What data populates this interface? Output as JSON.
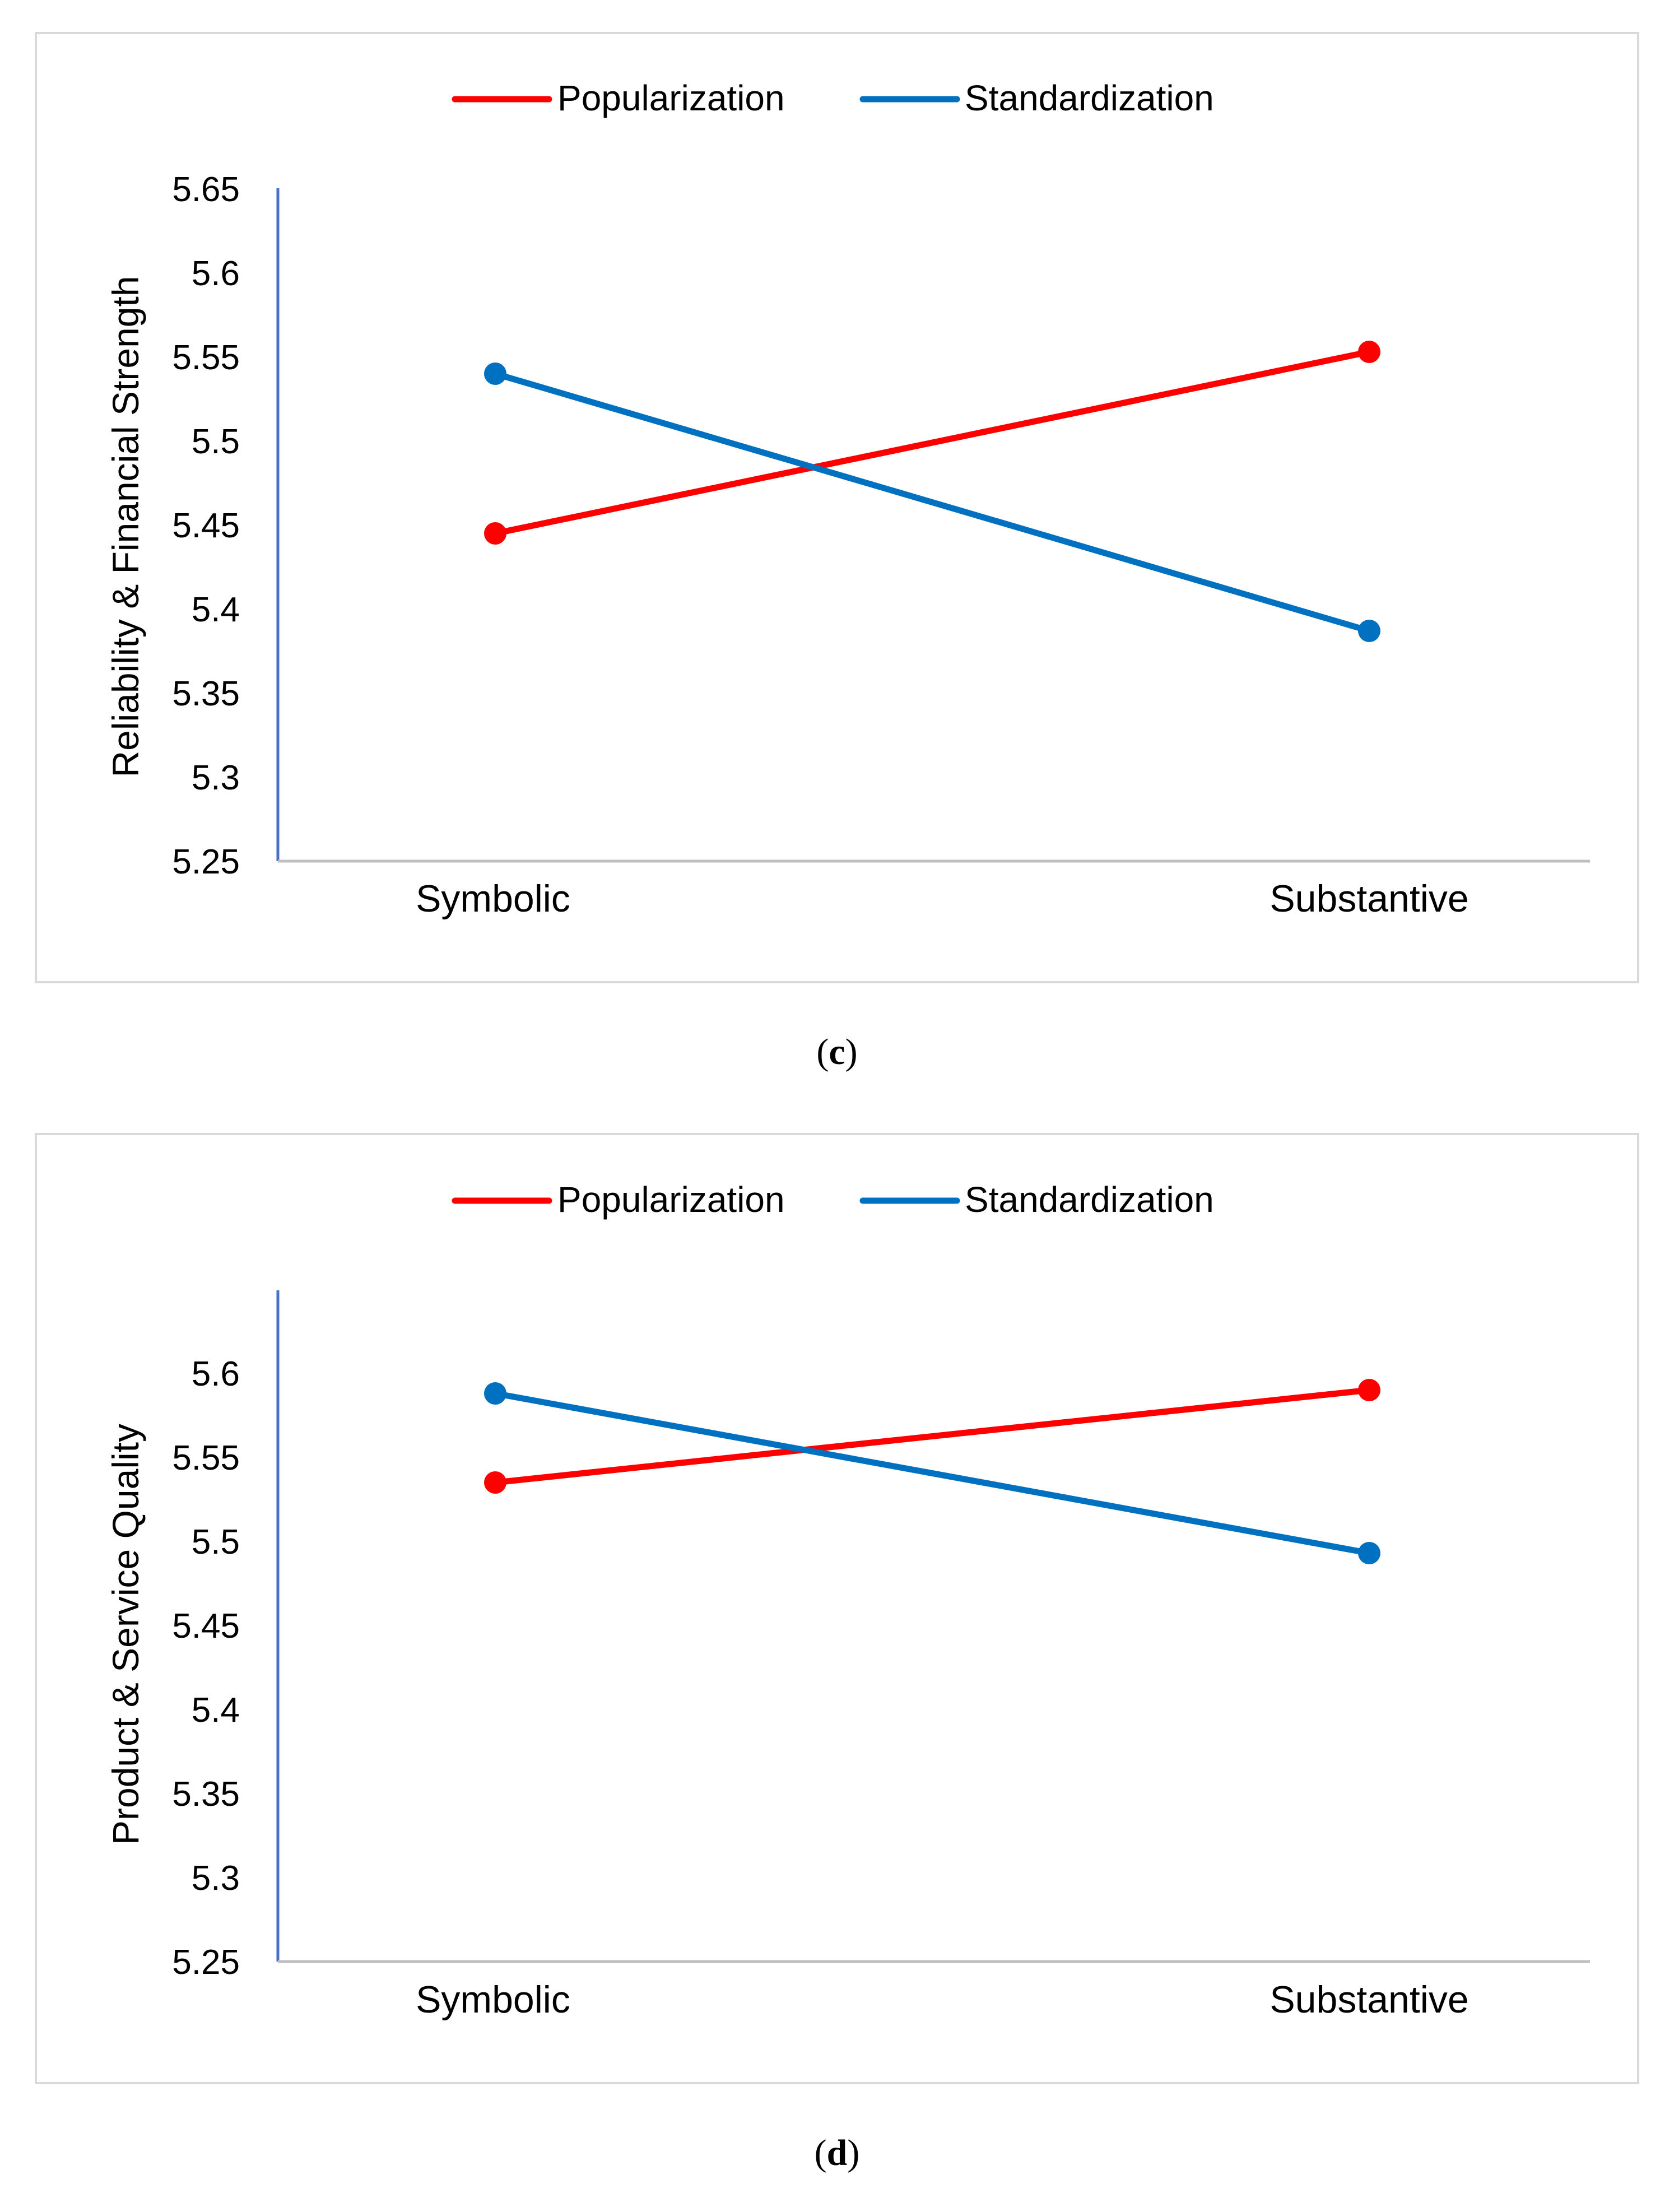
{
  "charts": {
    "c": {
      "caption_open": "(",
      "caption_letter": "c",
      "caption_close": ")",
      "legend": {
        "popularization": "Popularization",
        "standardization": "Standardization"
      }
    },
    "d": {
      "caption_open": "(",
      "caption_letter": "d",
      "caption_close": ")",
      "legend": {
        "popularization": "Popularization",
        "standardization": "Standardization"
      }
    }
  },
  "colors": {
    "popularization": "#ff0000",
    "standardization": "#0070c0",
    "axis": "#4472c4",
    "baseline": "#bfbfbf"
  },
  "chart_data": [
    {
      "id": "c",
      "type": "line",
      "title": "",
      "xlabel": "",
      "ylabel": "Reliability & Financial Strength",
      "categories": [
        "Symbolic",
        "Substantive"
      ],
      "ylim": [
        5.25,
        5.65
      ],
      "yticks": [
        5.25,
        5.3,
        5.35,
        5.4,
        5.45,
        5.5,
        5.55,
        5.6,
        5.65
      ],
      "ytick_labels": [
        "5.25",
        "5.3",
        "5.35",
        "5.4",
        "5.45",
        "5.5",
        "5.55",
        "5.6",
        "5.65"
      ],
      "legend_position": "top-center",
      "grid": false,
      "series": [
        {
          "name": "Popularization",
          "color": "#ff0000",
          "values": [
            5.445,
            5.553
          ]
        },
        {
          "name": "Standardization",
          "color": "#0070c0",
          "values": [
            5.54,
            5.387
          ]
        }
      ]
    },
    {
      "id": "d",
      "type": "line",
      "title": "",
      "xlabel": "",
      "ylabel": "Product & Service Quality",
      "categories": [
        "Symbolic",
        "Substantive"
      ],
      "ylim": [
        5.25,
        5.65
      ],
      "yticks": [
        5.25,
        5.3,
        5.35,
        5.4,
        5.45,
        5.5,
        5.55,
        5.6
      ],
      "ytick_labels": [
        "5.25",
        "5.3",
        "5.35",
        "5.4",
        "5.45",
        "5.5",
        "5.55",
        "5.6"
      ],
      "legend_position": "top-center",
      "grid": false,
      "series": [
        {
          "name": "Popularization",
          "color": "#ff0000",
          "values": [
            5.535,
            5.59
          ]
        },
        {
          "name": "Standardization",
          "color": "#0070c0",
          "values": [
            5.588,
            5.493
          ]
        }
      ]
    }
  ]
}
